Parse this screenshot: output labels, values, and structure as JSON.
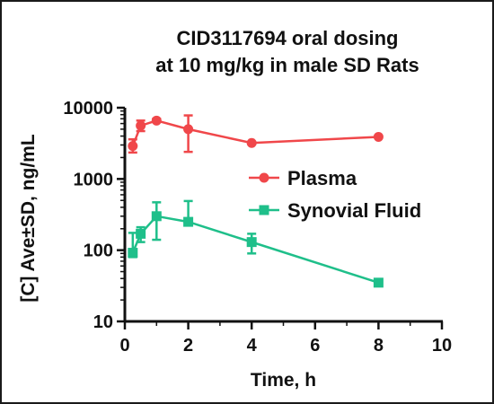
{
  "chart_data": {
    "type": "line",
    "title_lines": [
      "CID3117694 oral dosing",
      "at 10 mg/kg in male SD Rats"
    ],
    "xlabel": "Time, h",
    "ylabel": "[C] Ave±SD, ng/mL",
    "xlim": [
      0,
      10
    ],
    "ylim": [
      10,
      10000
    ],
    "yscale": "log",
    "x_ticks": [
      0,
      2,
      4,
      6,
      8,
      10
    ],
    "x_tick_labels": [
      "0",
      "2",
      "4",
      "6",
      "8",
      "10"
    ],
    "y_ticks": [
      10,
      100,
      1000,
      10000
    ],
    "y_tick_labels": [
      "10",
      "100",
      "1000",
      "10000"
    ],
    "grid": false,
    "legend_position": "right-middle",
    "series": [
      {
        "name": "Plasma",
        "color": "#f0474a",
        "marker": "circle",
        "points": [
          {
            "x": 0.25,
            "y": 2900,
            "lo": 2350,
            "hi": 3600
          },
          {
            "x": 0.5,
            "y": 5600,
            "lo": 4700,
            "hi": 6600
          },
          {
            "x": 1,
            "y": 6600,
            "lo": 6300,
            "hi": 7000
          },
          {
            "x": 2,
            "y": 5000,
            "lo": 2400,
            "hi": 7800
          },
          {
            "x": 4,
            "y": 3200,
            "lo": 3100,
            "hi": 3300
          },
          {
            "x": 8,
            "y": 3900,
            "lo": 3800,
            "hi": 4000
          }
        ]
      },
      {
        "name": "Synovial Fluid",
        "color": "#1fbf8a",
        "marker": "square",
        "points": [
          {
            "x": 0.25,
            "y": 92,
            "lo": 80,
            "hi": 175
          },
          {
            "x": 0.5,
            "y": 170,
            "lo": 130,
            "hi": 210
          },
          {
            "x": 1,
            "y": 300,
            "lo": 140,
            "hi": 470
          },
          {
            "x": 2,
            "y": 250,
            "lo": 240,
            "hi": 490
          },
          {
            "x": 4,
            "y": 130,
            "lo": 90,
            "hi": 170
          },
          {
            "x": 8,
            "y": 35,
            "lo": 33,
            "hi": 37
          }
        ]
      }
    ]
  }
}
